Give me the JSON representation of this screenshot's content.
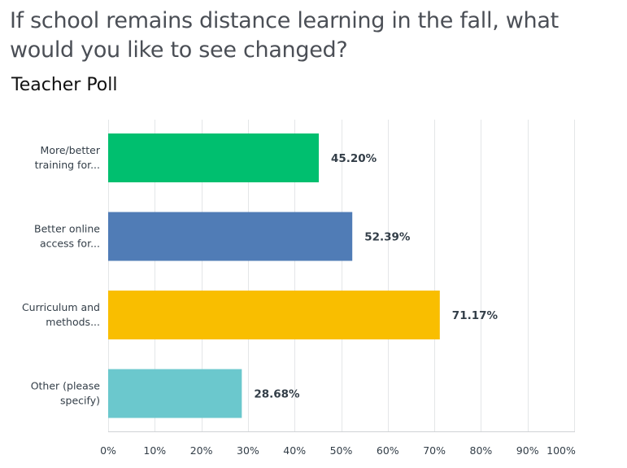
{
  "header": {
    "question": "If school remains distance learning in the fall, what would you like to see changed?",
    "subtitle": "Teacher Poll"
  },
  "chart_data": {
    "type": "bar",
    "orientation": "horizontal",
    "categories": [
      [
        "More/better",
        "training for..."
      ],
      [
        "Better online",
        "access for..."
      ],
      [
        "Curriculum and",
        "methods..."
      ],
      [
        "Other (please",
        "specify)"
      ]
    ],
    "values": [
      45.2,
      52.39,
      71.17,
      28.68
    ],
    "data_labels": [
      "45.20%",
      "52.39%",
      "71.17%",
      "28.68%"
    ],
    "colors": [
      "#00bf6f",
      "#507cb6",
      "#f9be00",
      "#6bc8cd"
    ],
    "xlim": [
      0,
      100
    ],
    "x_ticks": [
      "0%",
      "10%",
      "20%",
      "30%",
      "40%",
      "50%",
      "60%",
      "70%",
      "80%",
      "90%",
      "100%"
    ],
    "grid": true,
    "title": "If school remains distance learning in the fall, what would you like to see changed?",
    "xlabel": "",
    "ylabel": ""
  }
}
